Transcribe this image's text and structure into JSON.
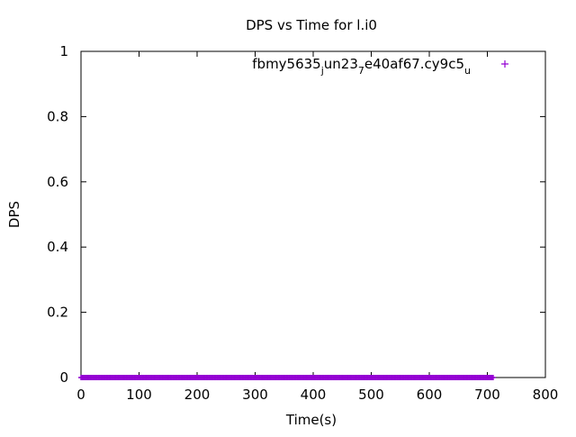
{
  "chart_data": {
    "type": "scatter",
    "title": "DPS vs Time for l.i0",
    "xlabel": "Time(s)",
    "ylabel": "DPS",
    "xlim": [
      0,
      800
    ],
    "ylim": [
      0,
      1
    ],
    "x_ticks": [
      "0",
      "100",
      "200",
      "300",
      "400",
      "500",
      "600",
      "700",
      "800"
    ],
    "y_ticks": [
      "0",
      "0.2",
      "0.4",
      "0.6",
      "0.8",
      "1"
    ],
    "grid": false,
    "legend_position": "top-right",
    "series": [
      {
        "name": "fbmy5635_jun23_7e40af67.cy9c5_u",
        "legend_parts": {
          "a": "fbmy5635",
          "b": "j",
          "c": "un23",
          "d": "7",
          "e": "e40af67.cy9c5",
          "f": "u"
        },
        "color": "#9400d3",
        "marker": "plus",
        "x_range": [
          0,
          710
        ],
        "x_step": 2,
        "y_value": 0
      }
    ]
  }
}
